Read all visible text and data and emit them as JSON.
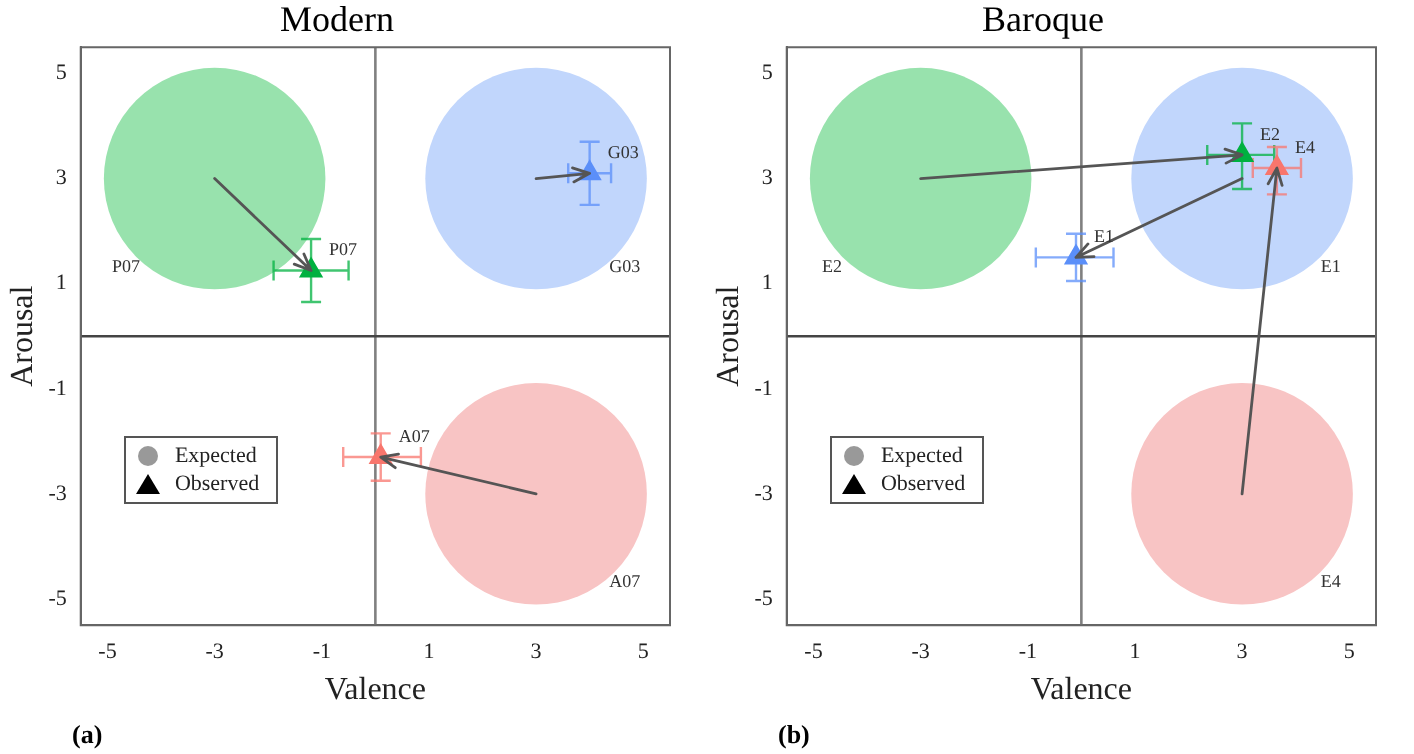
{
  "chart_data": [
    {
      "type": "scatter",
      "title": "Modern",
      "xlabel": "Valence",
      "ylabel": "Arousal",
      "xlim": [
        -5.5,
        5.5
      ],
      "ylim": [
        -5.5,
        5.5
      ],
      "xticks": [
        -5,
        -3,
        -1,
        1,
        3,
        5
      ],
      "yticks": [
        -5,
        -3,
        -1,
        1,
        3,
        5
      ],
      "grid": false,
      "ref_lines": [
        {
          "axis": "x",
          "value": 0,
          "color": "#808080"
        },
        {
          "axis": "y",
          "value": 0,
          "color": "#444444"
        }
      ],
      "series": [
        {
          "marker": "circle",
          "x": [
            -3,
            3,
            3
          ],
          "values": [
            3,
            3,
            -3
          ],
          "colors": [
            "#98e2ad",
            "#c1d6fc",
            "#f8c4c4"
          ],
          "value_labels": [
            "P07",
            "G03",
            "A07"
          ]
        },
        {
          "marker": "triangle",
          "x": [
            -1.2,
            4.0,
            0.1
          ],
          "values": [
            1.25,
            3.1,
            -2.3
          ],
          "xerrors": [
            [
              -1.9,
              -0.5
            ],
            [
              3.6,
              4.4
            ],
            [
              -0.6,
              0.85
            ]
          ],
          "errors": [
            [
              0.65,
              1.85
            ],
            [
              2.5,
              3.7
            ],
            [
              -2.75,
              -1.85
            ]
          ],
          "colors": [
            "#00b140",
            "#5b8ff9",
            "#f8766d"
          ],
          "value_labels": [
            "P07",
            "G03",
            "A07"
          ]
        }
      ],
      "annotations": [
        "Expected",
        "Observed",
        "(a)"
      ]
    },
    {
      "type": "scatter",
      "title": "Baroque",
      "xlabel": "Valence",
      "ylabel": "Arousal",
      "xlim": [
        -5.5,
        5.5
      ],
      "ylim": [
        -5.5,
        5.5
      ],
      "xticks": [
        -5,
        -3,
        -1,
        1,
        3,
        5
      ],
      "yticks": [
        -5,
        -3,
        -1,
        1,
        3,
        5
      ],
      "grid": false,
      "ref_lines": [
        {
          "axis": "x",
          "value": 0,
          "color": "#808080"
        },
        {
          "axis": "y",
          "value": 0,
          "color": "#444444"
        }
      ],
      "series": [
        {
          "marker": "circle",
          "x": [
            -3,
            3,
            3
          ],
          "values": [
            3,
            3,
            -3
          ],
          "colors": [
            "#98e2ad",
            "#c1d6fc",
            "#f8c4c4"
          ],
          "value_labels": [
            "E2",
            "E1",
            "E4"
          ]
        },
        {
          "marker": "triangle",
          "x": [
            3.0,
            -0.1,
            3.65
          ],
          "values": [
            3.45,
            1.5,
            3.2
          ],
          "xerrors": [
            [
              2.35,
              3.6
            ],
            [
              -0.85,
              0.6
            ],
            [
              3.2,
              4.1
            ]
          ],
          "errors": [
            [
              2.8,
              4.05
            ],
            [
              1.05,
              1.95
            ],
            [
              2.7,
              3.6
            ]
          ],
          "colors": [
            "#00b140",
            "#5b8ff9",
            "#f8766d"
          ],
          "value_labels": [
            "E2",
            "E1",
            "E4"
          ]
        }
      ],
      "annotations": [
        "Expected",
        "Observed",
        "(b)"
      ]
    }
  ]
}
